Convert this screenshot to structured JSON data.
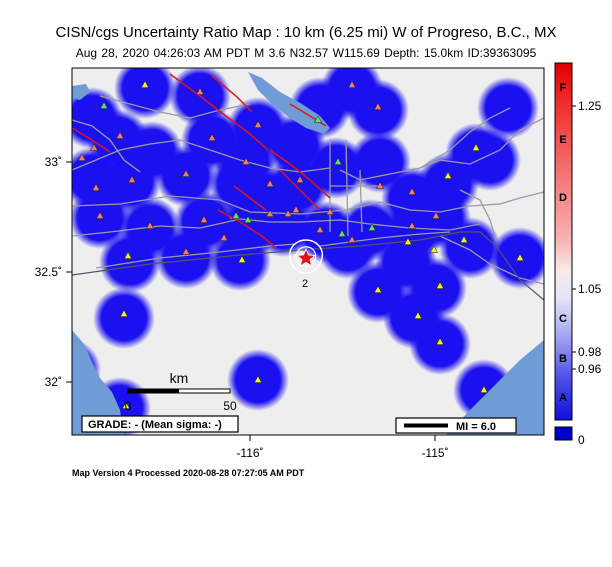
{
  "header": {
    "title": "CISN/cgs Uncertainty Ratio Map : 10 km (6.25 mi) W of Progreso, B.C., MX",
    "subtitle": "Aug 28, 2020 04:26:03 AM PDT   M 3.6   N32.57 W115.69   Depth: 15.0km   ID:39363095"
  },
  "axes": {
    "lon_ticks": [
      "-116˚",
      "-115˚"
    ],
    "lat_ticks": [
      "33˚",
      "32.5˚",
      "32˚"
    ]
  },
  "scale_bar": {
    "unit": "km",
    "start": "0",
    "end": "50"
  },
  "grade_text": "GRADE: - (Mean sigma: -)",
  "mi_legend": "MI = 6.0",
  "contour_label": "2",
  "colorbar": {
    "letters": [
      "F",
      "E",
      "D",
      "C",
      "B",
      "A"
    ],
    "values": [
      "1.25",
      "1.05",
      "0.98",
      "0.96",
      "0"
    ]
  },
  "colors": {
    "land": "#eeeeee",
    "water": "#6f9bd6",
    "station_disk": "#1a10f0",
    "fault": "#e0151b",
    "road": "#9a9aa6"
  },
  "footer": "Map Version 4 Processed 2020-08-28 07:27:05 AM PDT"
}
